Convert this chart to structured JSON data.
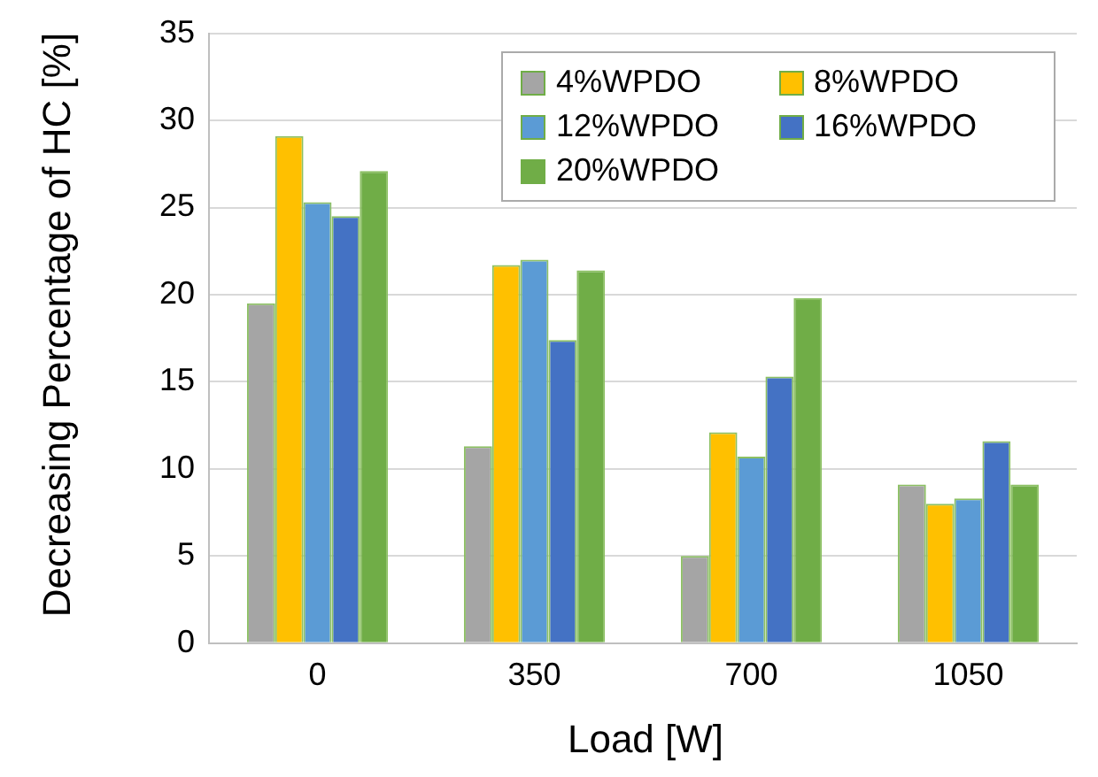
{
  "chart_data": {
    "type": "bar",
    "xlabel": "Load [W]",
    "ylabel": "Decreasing Percentage of HC [%]",
    "categories": [
      "0",
      "350",
      "700",
      "1050"
    ],
    "series": [
      {
        "name": "4%WPDO",
        "color": "#a5a5a5",
        "values": [
          19.5,
          11.3,
          5.0,
          9.1
        ]
      },
      {
        "name": "8%WPDO",
        "color": "#ffc000",
        "values": [
          29.1,
          21.7,
          12.1,
          8.0
        ]
      },
      {
        "name": "12%WPDO",
        "color": "#5b9bd5",
        "values": [
          25.3,
          22.0,
          10.7,
          8.3
        ]
      },
      {
        "name": "16%WPDO",
        "color": "#4472c4",
        "values": [
          24.5,
          17.4,
          15.3,
          11.6
        ]
      },
      {
        "name": "20%WPDO",
        "color": "#70ad47",
        "values": [
          27.1,
          21.4,
          19.8,
          9.1
        ]
      }
    ],
    "ylim": [
      0,
      35
    ],
    "yticks": [
      0,
      5,
      10,
      15,
      20,
      25,
      30,
      35
    ],
    "grid": "y",
    "legend": "top right"
  }
}
